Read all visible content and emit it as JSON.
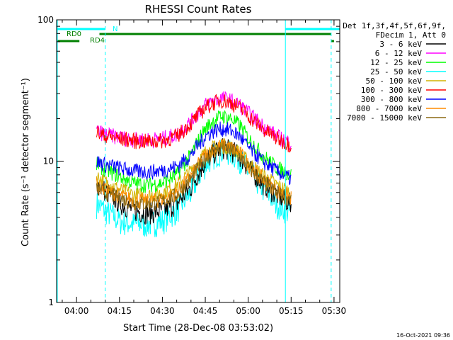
{
  "chart_data": {
    "type": "line",
    "title": "RHESSI Count Rates",
    "xlabel": "Start Time (28-Dec-08 03:53:02)",
    "ylabel": "Count Rate (s⁻¹ detector segment⁻¹)",
    "y_scale": "log",
    "ylim": [
      1,
      100
    ],
    "xlim": [
      "03:53:02",
      "05:32:00"
    ],
    "x_ticks": [
      "04:00",
      "04:15",
      "04:30",
      "04:45",
      "05:00",
      "05:15",
      "05:30"
    ],
    "y_ticks": [
      "1",
      "10",
      "100"
    ],
    "grid": false,
    "legend_position": "top-right outside plot",
    "legend_header": [
      "Det 1f,3f,4f,5f,6f,9f,",
      "FDecim 1, Att 0"
    ],
    "x": [
      "04:07",
      "04:10",
      "04:15",
      "04:20",
      "04:25",
      "04:30",
      "04:35",
      "04:40",
      "04:45",
      "04:48",
      "04:51",
      "04:54",
      "04:57",
      "05:00",
      "05:05",
      "05:10",
      "05:15"
    ],
    "series": [
      {
        "name": "3 - 6 keV",
        "color": "#000000",
        "values": [
          7.0,
          6.2,
          5.1,
          4.5,
          4.3,
          4.5,
          5.0,
          6.5,
          10.0,
          11.5,
          12.5,
          12.0,
          11.0,
          9.0,
          7.0,
          5.8,
          5.0
        ]
      },
      {
        "name": "6 - 12 keV",
        "color": "#ff00ff",
        "values": [
          16.5,
          15.5,
          14.8,
          14.3,
          14.2,
          14.5,
          15.5,
          19.0,
          25.0,
          27.0,
          28.0,
          27.0,
          25.0,
          22.0,
          18.0,
          15.0,
          13.5
        ]
      },
      {
        "name": "12 - 25 keV",
        "color": "#00ff00",
        "values": [
          9.5,
          8.8,
          7.8,
          7.0,
          6.8,
          7.0,
          8.0,
          11.0,
          17.0,
          19.5,
          21.0,
          20.0,
          18.0,
          14.5,
          11.0,
          9.0,
          8.0
        ]
      },
      {
        "name": "25 - 50 keV",
        "color": "#00ffff",
        "values": [
          5.0,
          4.5,
          3.8,
          3.6,
          3.6,
          3.8,
          4.5,
          6.0,
          9.5,
          11.0,
          12.0,
          11.5,
          10.5,
          8.5,
          6.5,
          5.0,
          4.3
        ]
      },
      {
        "name": "50 - 100 keV",
        "color": "#d2b400",
        "values": [
          7.8,
          7.2,
          6.3,
          5.8,
          5.7,
          6.0,
          6.8,
          8.5,
          11.5,
          12.5,
          13.0,
          12.5,
          11.5,
          9.8,
          8.0,
          6.8,
          6.0
        ]
      },
      {
        "name": "100 - 300 keV",
        "color": "#ff0000",
        "values": [
          16.0,
          15.0,
          14.5,
          14.0,
          13.8,
          14.0,
          15.0,
          18.5,
          24.0,
          26.0,
          27.0,
          26.0,
          24.0,
          21.0,
          17.0,
          14.5,
          13.0
        ]
      },
      {
        "name": "300 - 800 keV",
        "color": "#0000ff",
        "values": [
          10.0,
          9.5,
          9.0,
          8.5,
          8.4,
          8.6,
          9.2,
          11.0,
          15.0,
          16.5,
          17.0,
          16.5,
          15.0,
          12.5,
          10.0,
          8.5,
          7.5
        ]
      },
      {
        "name": "800 - 7000 keV",
        "color": "#ff8c00",
        "values": [
          6.8,
          6.3,
          5.7,
          5.3,
          5.2,
          5.4,
          6.0,
          7.8,
          11.0,
          12.2,
          13.0,
          12.5,
          11.5,
          9.5,
          7.5,
          6.2,
          5.5
        ]
      },
      {
        "name": "7000 - 15000 keV",
        "color": "#8b6914",
        "values": [
          6.5,
          6.0,
          5.5,
          5.1,
          5.0,
          5.2,
          5.8,
          7.5,
          10.5,
          11.8,
          12.5,
          12.0,
          11.0,
          9.0,
          7.2,
          6.0,
          5.3
        ]
      }
    ],
    "annotations": {
      "flags": [
        {
          "label": "RD0",
          "color": "#008000",
          "segments": [
            [
              "04:08",
              "05:29"
            ]
          ]
        },
        {
          "label": "RD4",
          "color": "#008000",
          "segments": [
            [
              "03:53",
              "04:01"
            ],
            [
              "05:29",
              "05:30"
            ]
          ]
        },
        {
          "label": "N",
          "color": "#00ffff",
          "segments": [
            [
              "03:53",
              "04:10"
            ],
            [
              "05:13",
              "05:32"
            ]
          ]
        }
      ],
      "vertical_lines": [
        {
          "x": "03:53",
          "color": "#00ffff",
          "style": "solid"
        },
        {
          "x": "04:10",
          "color": "#00ffff",
          "style": "dashed"
        },
        {
          "x": "05:13",
          "color": "#00ffff",
          "style": "solid"
        },
        {
          "x": "05:29",
          "color": "#00ffff",
          "style": "dashed"
        }
      ]
    }
  },
  "footer_timestamp": "16-Oct-2021 09:36"
}
